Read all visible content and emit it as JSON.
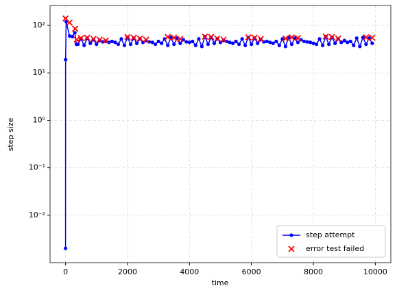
{
  "chart_data": {
    "type": "line",
    "xlabel": "time",
    "ylabel": "step size",
    "xlim": [
      -500,
      10500
    ],
    "ylim": [
      0.001,
      263
    ],
    "ylog": true,
    "grid": true,
    "legend": "lower right",
    "xticks": [
      0,
      2000,
      4000,
      6000,
      8000,
      10000
    ],
    "yticks": [
      {
        "value": 0.01,
        "label": "10⁻²"
      },
      {
        "value": 0.1,
        "label": "10⁻¹"
      },
      {
        "value": 1,
        "label": "10⁰"
      },
      {
        "value": 10,
        "label": "10¹"
      },
      {
        "value": 100,
        "label": "10²"
      }
    ],
    "series": [
      {
        "name": "step attempt",
        "type": "line",
        "color": "#0000ff",
        "x": [
          0,
          2,
          20,
          130,
          220,
          300,
          350,
          400,
          500,
          600,
          700,
          800,
          900,
          1000,
          1100,
          1200,
          1300,
          1400,
          1500,
          1600,
          1700,
          1800,
          1900,
          2000,
          2100,
          2200,
          2300,
          2400,
          2500,
          2600,
          2700,
          2800,
          2900,
          3000,
          3100,
          3200,
          3300,
          3400,
          3500,
          3600,
          3700,
          3800,
          3900,
          4000,
          4100,
          4200,
          4300,
          4400,
          4500,
          4600,
          4700,
          4800,
          4900,
          5000,
          5100,
          5200,
          5300,
          5400,
          5500,
          5600,
          5700,
          5800,
          5900,
          6000,
          6100,
          6200,
          6300,
          6400,
          6500,
          6600,
          6700,
          6800,
          6900,
          7000,
          7100,
          7200,
          7300,
          7400,
          7500,
          7600,
          7700,
          7800,
          7900,
          8000,
          8100,
          8200,
          8300,
          8400,
          8500,
          8600,
          8700,
          8800,
          8900,
          9000,
          9100,
          9200,
          9300,
          9400,
          9500,
          9600,
          9700,
          9800,
          9900
        ],
        "values": [
          0.002,
          19,
          120,
          60,
          58,
          70,
          40,
          40,
          52,
          38,
          54,
          42,
          50,
          40,
          48,
          45,
          46,
          44,
          46,
          44,
          40,
          52,
          38,
          56,
          40,
          54,
          42,
          52,
          44,
          48,
          45,
          44,
          40,
          46,
          42,
          52,
          38,
          56,
          40,
          54,
          42,
          50,
          45,
          44,
          46,
          38,
          52,
          36,
          58,
          40,
          56,
          42,
          52,
          44,
          48,
          46,
          44,
          42,
          46,
          40,
          52,
          38,
          56,
          40,
          54,
          42,
          50,
          45,
          46,
          44,
          42,
          46,
          38,
          52,
          36,
          56,
          40,
          54,
          44,
          50,
          46,
          45,
          44,
          42,
          40,
          52,
          38,
          58,
          40,
          56,
          42,
          52,
          44,
          48,
          44,
          46,
          38,
          54,
          36,
          56,
          40,
          54,
          42
        ]
      },
      {
        "name": "error test failed",
        "type": "scatter",
        "color": "#ff0000",
        "x": [
          0,
          130,
          310,
          360,
          500,
          700,
          900,
          1100,
          1300,
          2000,
          2200,
          2400,
          2600,
          3300,
          3500,
          3700,
          4500,
          4700,
          4900,
          5100,
          5900,
          6100,
          6300,
          7100,
          7300,
          7500,
          8400,
          8600,
          8800,
          9700,
          9900
        ],
        "values": [
          140,
          115,
          85,
          50,
          54,
          55,
          52,
          50,
          48,
          57,
          55,
          53,
          50,
          57,
          55,
          52,
          58,
          57,
          53,
          50,
          56,
          55,
          52,
          53,
          56,
          54,
          58,
          57,
          53,
          56,
          55
        ]
      }
    ]
  }
}
